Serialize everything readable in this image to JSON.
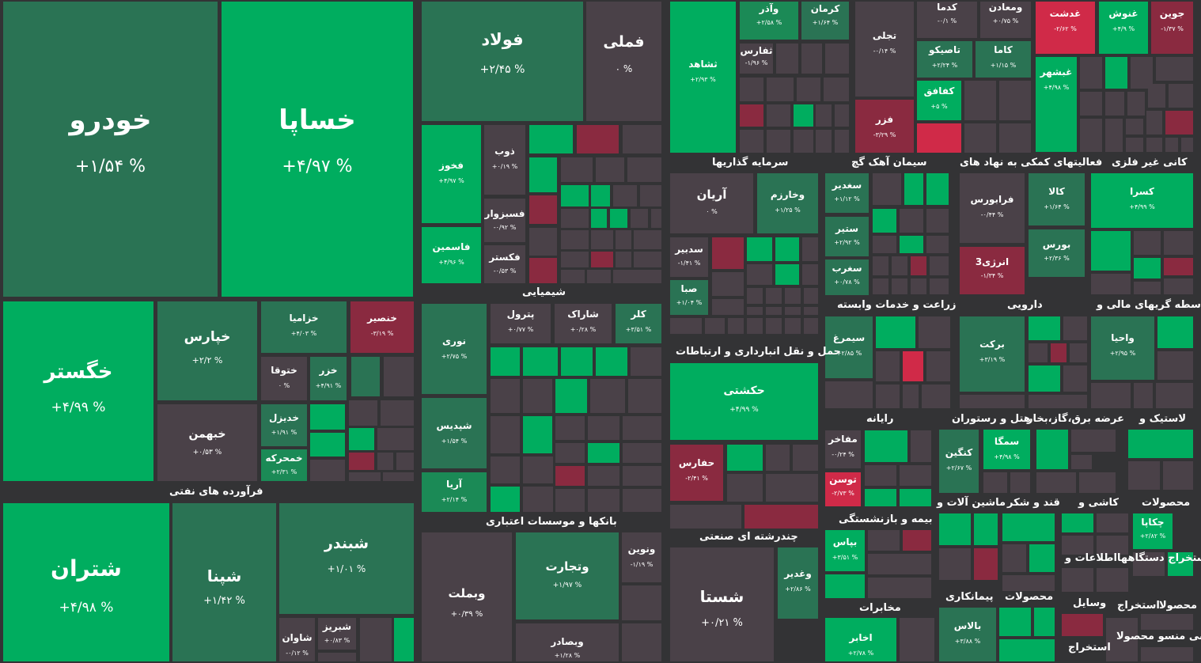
{
  "big": [
    {
      "sym": "خودرو",
      "pct": "+۱/۵۴ %"
    },
    {
      "sym": "خساپا",
      "pct": "+۴/۹۷ %"
    },
    {
      "sym": "خگستر",
      "pct": "+۴/۹۹ %"
    },
    {
      "sym": "شتران",
      "pct": "+۴/۹۸ %"
    },
    {
      "sym": "شپنا",
      "pct": "+۱/۴۲ %"
    },
    {
      "sym": "شبندر",
      "pct": "+۱/۰۱ %"
    },
    {
      "sym": "فولاد",
      "pct": "+۲/۴۵ %"
    },
    {
      "sym": "فملی",
      "pct": "۰ %"
    },
    {
      "sym": "شستا",
      "pct": "+۰/۲۱ %"
    },
    {
      "sym": "خپارس",
      "pct": "+۲/۲ %"
    },
    {
      "sym": "خبهمن",
      "pct": "+۰/۵۳ %"
    },
    {
      "sym": "وبملت",
      "pct": "+۰/۳۹ %"
    },
    {
      "sym": "وتجارت",
      "pct": "+۱/۹۷ %"
    },
    {
      "sym": "حکشتی",
      "pct": "+۴/۹۹ %"
    }
  ],
  "small": [
    {
      "sym": "خزامیا",
      "pct": "+۴/۰۳ %"
    },
    {
      "sym": "خنصیر",
      "pct": "-۳/۱۹ %"
    },
    {
      "sym": "ختوقا",
      "pct": "۰ %"
    },
    {
      "sym": "خزر",
      "pct": "+۴/۹۱ %"
    },
    {
      "sym": "خدیزل",
      "pct": "+۱/۹۱ %"
    },
    {
      "sym": "خمحرکه",
      "pct": "+۲/۳۱ %"
    },
    {
      "sym": "شاوان",
      "pct": "-۰/۱۲ %"
    },
    {
      "sym": "شبریز",
      "pct": "+۰/۸۳ %"
    },
    {
      "sym": "فخوز",
      "pct": "+۴/۹۷ %"
    },
    {
      "sym": "ذوب",
      "pct": "+۰/۱۹ %"
    },
    {
      "sym": "فسبزوار",
      "pct": "-۰/۹۲ %"
    },
    {
      "sym": "فاسمین",
      "pct": "+۴/۹۶ %"
    },
    {
      "sym": "فکستر",
      "pct": "-۰/۵۳ %"
    },
    {
      "sym": "نوری",
      "pct": "+۲/۷۵ %"
    },
    {
      "sym": "پترول",
      "pct": "+۰/۷۷ %"
    },
    {
      "sym": "شاراک",
      "pct": "+۰/۲۸ %"
    },
    {
      "sym": "کلر",
      "pct": "+۳/۵۱ %"
    },
    {
      "sym": "شپدیس",
      "pct": "+۱/۵۴ %"
    },
    {
      "sym": "آریا",
      "pct": "+۲/۱۴ %"
    },
    {
      "sym": "ونوین",
      "pct": "-۱/۱۹ %"
    },
    {
      "sym": "وبصادر",
      "pct": "+۱/۲۸ %"
    },
    {
      "sym": "وآذر",
      "pct": "+۲/۵۸ %"
    },
    {
      "sym": "کرمان",
      "pct": "+۱/۶۴ %"
    },
    {
      "sym": "ثفارس",
      "pct": "-۱/۹۶ %"
    },
    {
      "sym": "ثشاهد",
      "pct": "+۲/۹۳ %"
    },
    {
      "sym": "کدما",
      "pct": "-۰/۱ %"
    },
    {
      "sym": "ومعادن",
      "pct": "+۰/۷۵ %"
    },
    {
      "sym": "تجلی",
      "pct": "-۰/۱۴ %"
    },
    {
      "sym": "تاصیکو",
      "pct": "+۲/۲۴ %"
    },
    {
      "sym": "کاما",
      "pct": "+۱/۱۵ %"
    },
    {
      "sym": "کفافق",
      "pct": "+۵ %"
    },
    {
      "sym": "فزر",
      "pct": "-۳/۲۹ %"
    },
    {
      "sym": "غدشت",
      "pct": "-۲/۶۲ %"
    },
    {
      "sym": "غنوش",
      "pct": "+۴/۹ %"
    },
    {
      "sym": "جوین",
      "pct": "-۱/۳۷ %"
    },
    {
      "sym": "غبشهر",
      "pct": "+۴/۹۸ %"
    },
    {
      "sym": "آریان",
      "pct": "۰ %"
    },
    {
      "sym": "وخارزم",
      "pct": "+۱/۲۵ %"
    },
    {
      "sym": "سدبیر",
      "pct": "-۱/۴۱ %"
    },
    {
      "sym": "صبا",
      "pct": "+۱/۰۴ %"
    },
    {
      "sym": "سغدیر",
      "pct": "+۱/۱۲ %"
    },
    {
      "sym": "ستیر",
      "pct": "+۲/۹۲ %"
    },
    {
      "sym": "سغرب",
      "pct": "+۰/۷۸ %"
    },
    {
      "sym": "فرابورس",
      "pct": "-۰/۴۴ %"
    },
    {
      "sym": "کالا",
      "pct": "+۱/۶۴ %"
    },
    {
      "sym": "بورس",
      "pct": "+۲/۳۶ %"
    },
    {
      "sym": "انرژی3",
      "pct": "-۱/۳۴ %"
    },
    {
      "sym": "کسرا",
      "pct": "+۴/۹۹ %"
    },
    {
      "sym": "سیمرغ",
      "pct": "+۲/۸۵ %"
    },
    {
      "sym": "برکت",
      "pct": "+۳/۱۹ %"
    },
    {
      "sym": "واحیا",
      "pct": "+۲/۹۵ %"
    },
    {
      "sym": "حفارس",
      "pct": "-۲/۴۱ %"
    },
    {
      "sym": "مفاخر",
      "pct": "-۰/۲۴ %"
    },
    {
      "sym": "توسن",
      "pct": "-۲/۷۳ %"
    },
    {
      "sym": "کنگین",
      "pct": "+۲/۶۷ %"
    },
    {
      "sym": "سمگا",
      "pct": "+۴/۹۸ %"
    },
    {
      "sym": "وغدیر",
      "pct": "+۲/۸۶ %"
    },
    {
      "sym": "بپاس",
      "pct": "+۳/۵۱ %"
    },
    {
      "sym": "چکاپا",
      "pct": "+۲/۸۲ %"
    },
    {
      "sym": "اخابر",
      "pct": "+۲/۷۸ %"
    },
    {
      "sym": "بالاس",
      "pct": "+۳/۸۸ %"
    }
  ],
  "sectors": [
    "فرآورده های نفتی",
    "شیمیایی",
    "بانکها و موسسات اعتباری",
    "سرمایه گذاریها",
    "سیمان آهک گچ",
    "فعالیتهای کمکی به نهاد های",
    "کانی غیر فلزی",
    "حمل و نقل انبارداری و ارتباطات",
    "زراعت و خدمات وابسته",
    "دارویی",
    "واسطه گریهای مالی و",
    "رایانه",
    "هتل و رستوران",
    "عرضه برق،گاز،بخار",
    "لاستیک و",
    "چندرشته ای صنعتی",
    "بیمه و بازنشستگی",
    "ماشین آلات و",
    "قند و شکر",
    "کاشی و",
    "محصولات",
    "اطلاعات و",
    "استخراج دستگاهها",
    "مخابرات",
    "پیمانکاری",
    "محصولات",
    "وسایل",
    "استخراج",
    "محصولا",
    "فنی منسو محصولا",
    "استخراج"
  ]
}
